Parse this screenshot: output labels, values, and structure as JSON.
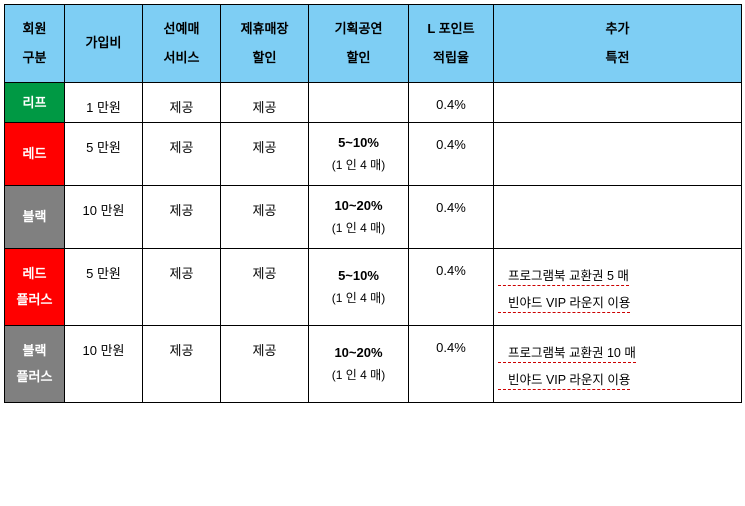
{
  "colors": {
    "header_bg": "#7ecef4",
    "leaf": "#009944",
    "red": "#ff0000",
    "black": "#808080",
    "border": "#000000",
    "text": "#000000",
    "tier_text": "#ffffff"
  },
  "headers": {
    "member": "회원\n구분",
    "fee": "가입비",
    "prebook": "선예매\n서비스",
    "partner": "제휴매장\n할인",
    "show": "기획공연\n할인",
    "point": "L 포인트\n적립율",
    "extra": "추가\n특전"
  },
  "rows": [
    {
      "tier_key": "leaf",
      "tier_label": "리프",
      "tier_bg": "#009944",
      "fee": "1 만원",
      "prebook": "제공",
      "partner": "제공",
      "show_main": "",
      "show_sub": "",
      "point": "0.4%",
      "benefit1": "",
      "benefit2": ""
    },
    {
      "tier_key": "red",
      "tier_label": "레드",
      "tier_bg": "#ff0000",
      "fee": "5 만원",
      "prebook": "제공",
      "partner": "제공",
      "show_main": "5~10%",
      "show_sub": "(1 인 4 매)",
      "point": "0.4%",
      "benefit1": "",
      "benefit2": ""
    },
    {
      "tier_key": "black",
      "tier_label": "블랙",
      "tier_bg": "#808080",
      "fee": "10 만원",
      "prebook": "제공",
      "partner": "제공",
      "show_main": "10~20%",
      "show_sub": "(1 인 4 매)",
      "point": "0.4%",
      "benefit1": "",
      "benefit2": ""
    },
    {
      "tier_key": "red-plus",
      "tier_label": "레드\n플러스",
      "tier_bg": "#ff0000",
      "fee": "5 만원",
      "prebook": "제공",
      "partner": "제공",
      "show_main": "5~10%",
      "show_sub": "(1 인 4 매)",
      "point": "0.4%",
      "benefit1": "프로그램북 교환권 5 매",
      "benefit2": "빈야드 VIP 라운지 이용"
    },
    {
      "tier_key": "black-plus",
      "tier_label": "블랙\n플러스",
      "tier_bg": "#808080",
      "fee": "10 만원",
      "prebook": "제공",
      "partner": "제공",
      "show_main": "10~20%",
      "show_sub": "(1 인 4 매)",
      "point": "0.4%",
      "benefit1": "프로그램북 교환권 10 매",
      "benefit2": "빈야드 VIP 라운지 이용"
    }
  ]
}
